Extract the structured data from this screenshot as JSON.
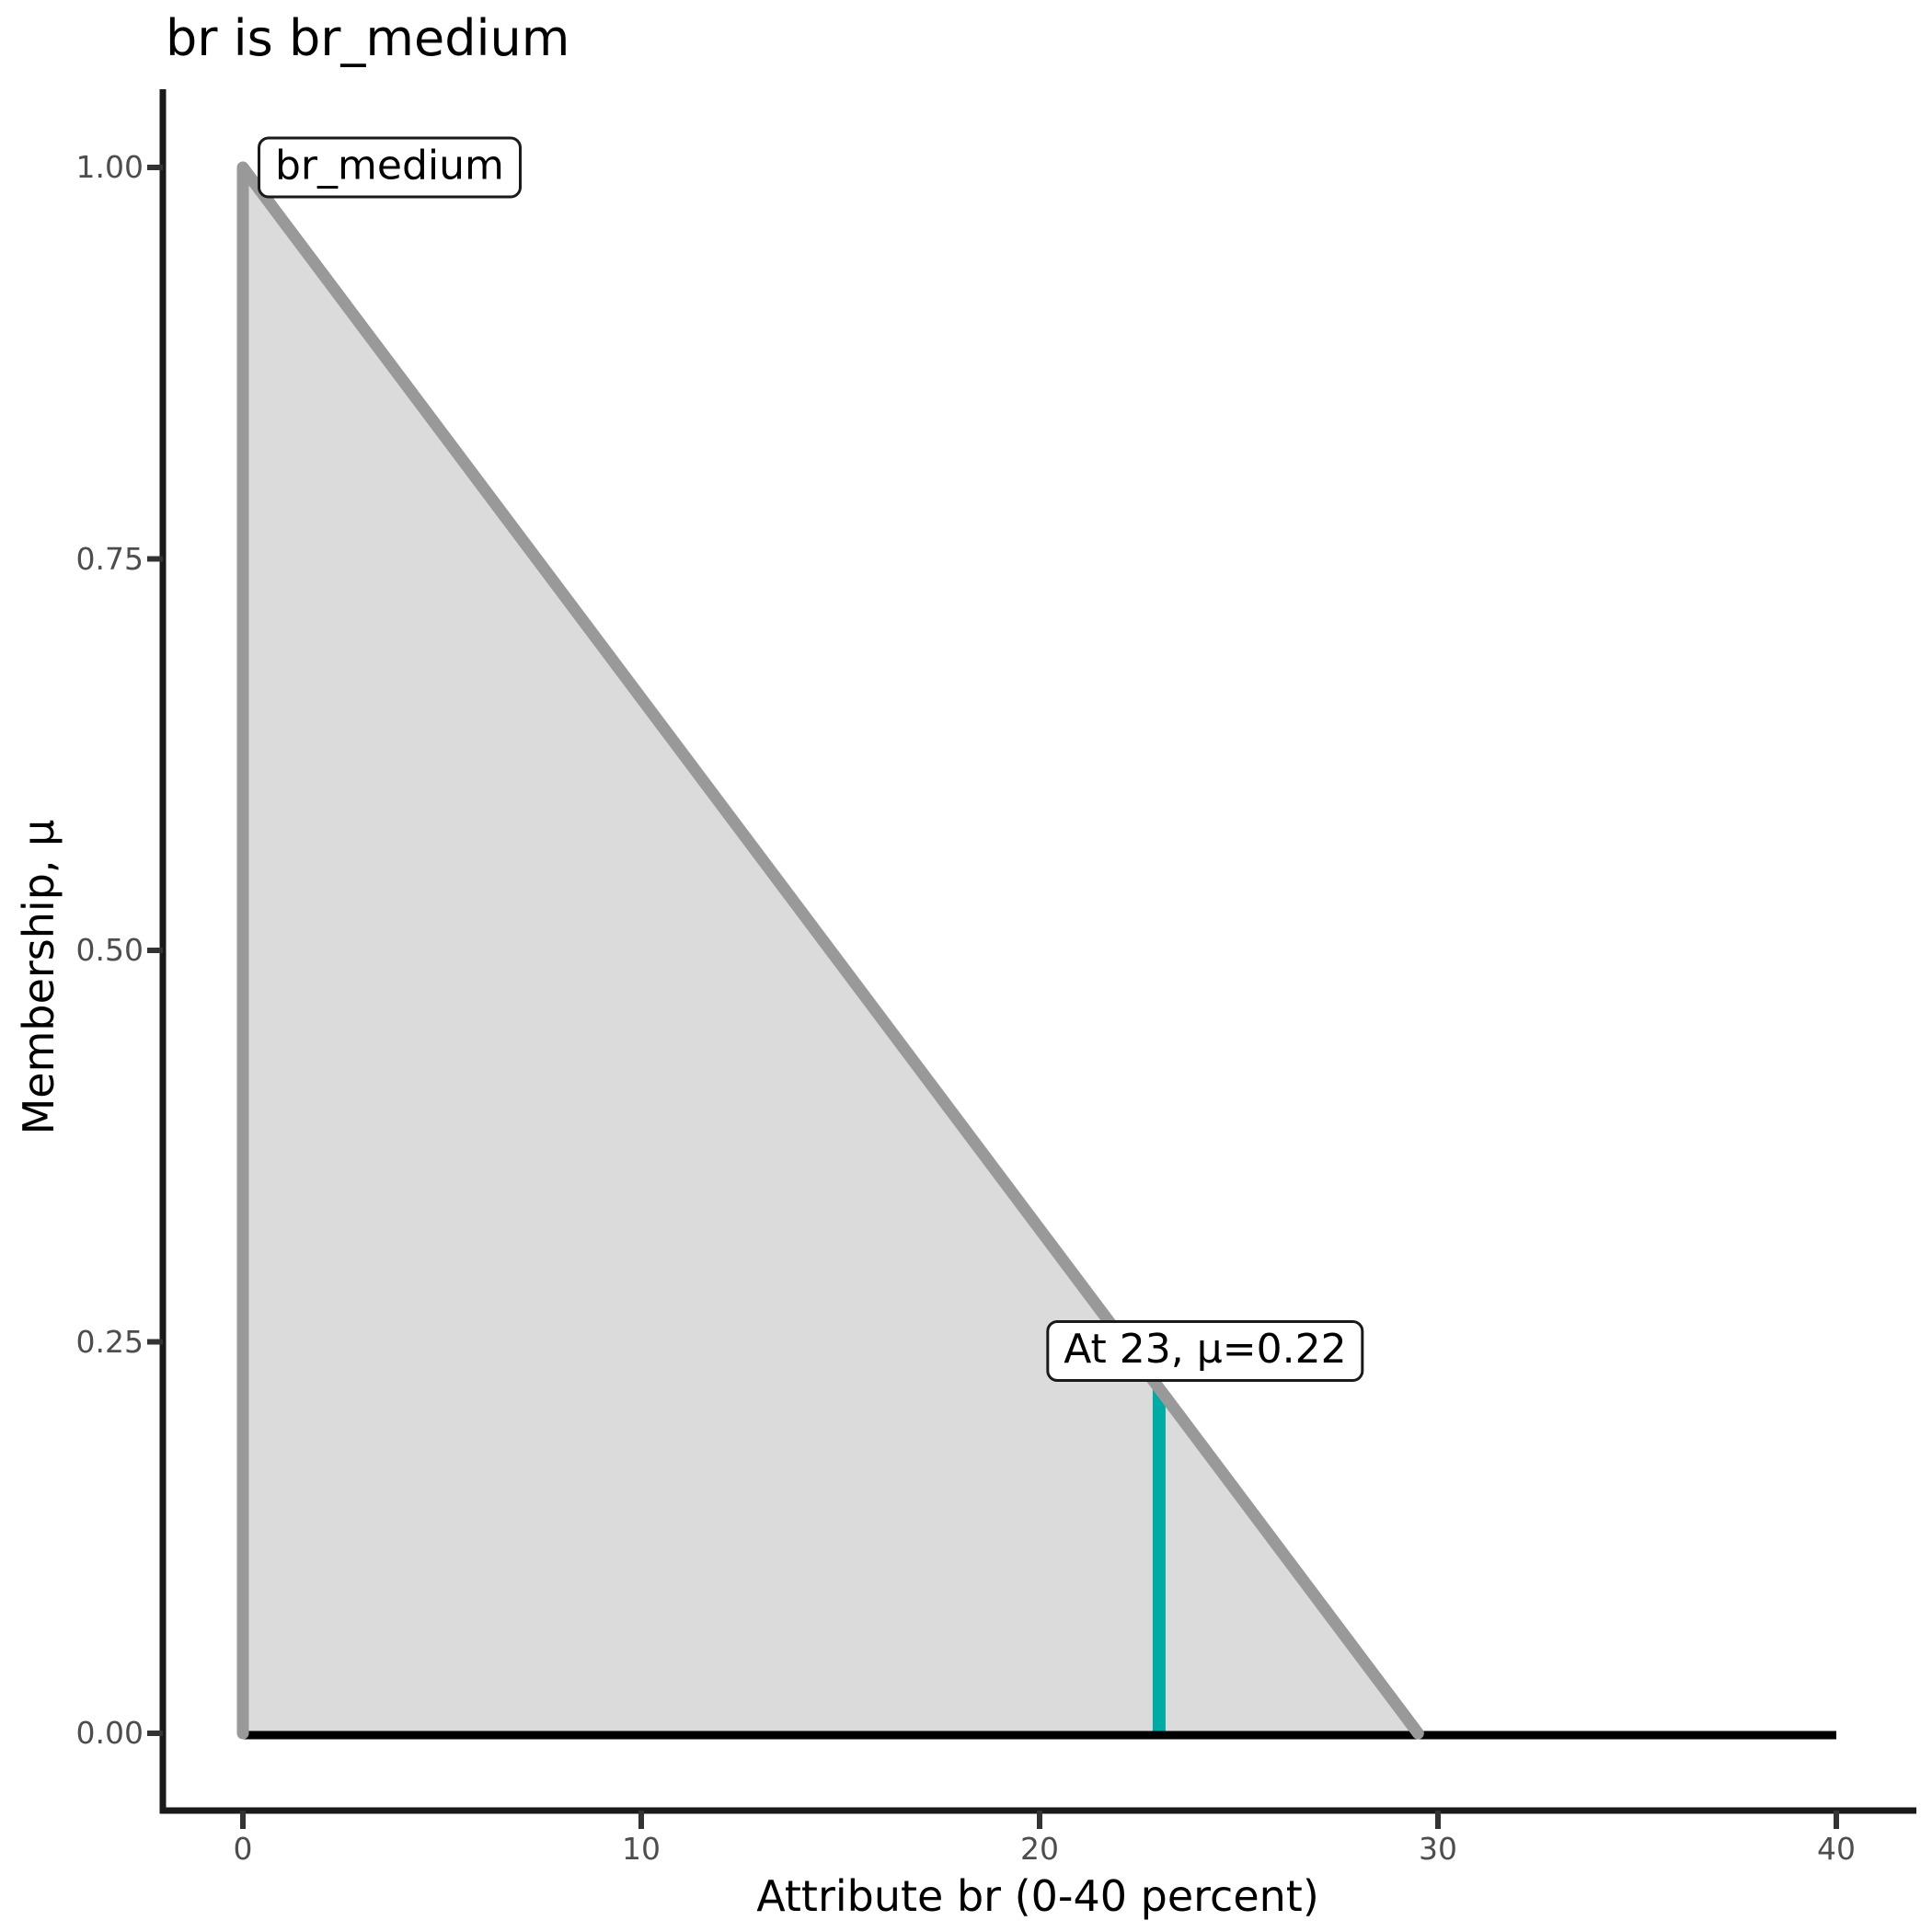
{
  "chart_data": {
    "type": "area",
    "title": "br is br_medium",
    "xlabel": "Attribute br (0-40 percent)",
    "ylabel": "Membership, μ",
    "xlim": [
      0,
      40
    ],
    "ylim": [
      0,
      1
    ],
    "grid": false,
    "legend": false,
    "x_ticks": [
      {
        "value": 0,
        "label": "0"
      },
      {
        "value": 10,
        "label": "10"
      },
      {
        "value": 20,
        "label": "20"
      },
      {
        "value": 30,
        "label": "30"
      },
      {
        "value": 40,
        "label": "40"
      }
    ],
    "y_ticks": [
      {
        "value": 0.0,
        "label": "0.00"
      },
      {
        "value": 0.25,
        "label": "0.25"
      },
      {
        "value": 0.5,
        "label": "0.50"
      },
      {
        "value": 0.75,
        "label": "0.75"
      },
      {
        "value": 1.0,
        "label": "1.00"
      }
    ],
    "membership_function": {
      "name": "br_medium",
      "shape": "triangle",
      "vertices": [
        [
          0,
          0
        ],
        [
          0,
          1
        ],
        [
          29.5,
          0
        ]
      ],
      "fill_color": "#DBDBDB",
      "outline_color": "#999999"
    },
    "baseline": {
      "y": 0,
      "x_from": 0,
      "x_to": 40,
      "color": "#000000"
    },
    "crisp_input": {
      "x": 23,
      "mu": 0.22,
      "color": "#00ABA6"
    },
    "annotations": [
      {
        "text": "br_medium",
        "anchor_x": 0,
        "anchor_y": 1
      },
      {
        "text": "At 23, μ=0.22",
        "anchor_x": 23,
        "anchor_y": 0.22
      }
    ],
    "axis_color": "#1a1a1a",
    "tick_color": "#333333",
    "tick_label_color": "#4d4d4d"
  }
}
